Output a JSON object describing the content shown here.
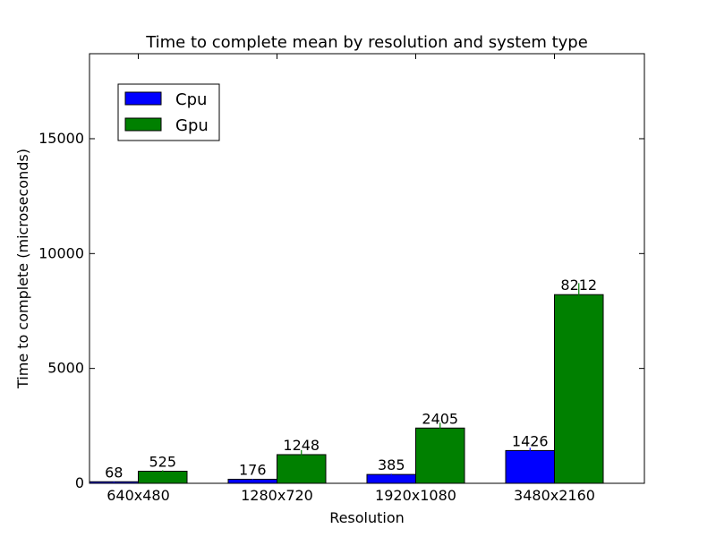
{
  "chart_data": {
    "type": "bar",
    "title": "Time to complete mean by resolution and system type",
    "xlabel": "Resolution",
    "ylabel": "Time to complete (microseconds)",
    "categories": [
      "640x480",
      "1280x720",
      "1920x1080",
      "3480x2160"
    ],
    "ylim": [
      0,
      18700
    ],
    "yticks": [
      0,
      5000,
      10000,
      15000
    ],
    "legend_position": "top-left",
    "grid": false,
    "series": [
      {
        "name": "Cpu",
        "color": "#0000ff",
        "values": [
          68,
          176,
          385,
          1426
        ],
        "errors": [
          10,
          15,
          30,
          120
        ],
        "labels": [
          "68",
          "176",
          "385",
          "1426"
        ]
      },
      {
        "name": "Gpu",
        "color": "#008000",
        "values": [
          525,
          1248,
          2405,
          8212
        ],
        "errors": [
          40,
          200,
          230,
          500
        ],
        "labels": [
          "525",
          "1248",
          "2405",
          "8212"
        ]
      }
    ]
  }
}
